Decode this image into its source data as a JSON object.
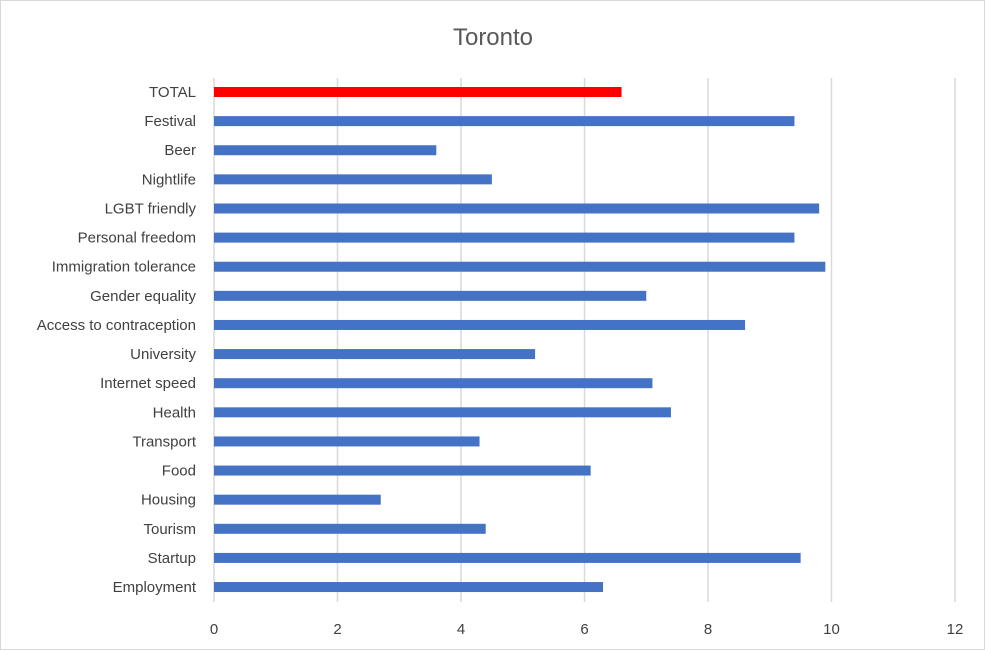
{
  "chart_data": {
    "type": "bar",
    "orientation": "horizontal",
    "title": "Toronto",
    "xlabel": "",
    "ylabel": "",
    "xlim": [
      0,
      12
    ],
    "xticks": [
      0,
      2,
      4,
      6,
      8,
      10,
      12
    ],
    "grid": "vertical",
    "legend": "none",
    "colors": {
      "default": "#4472c4",
      "highlight": "#ff0000",
      "grid": "#d9d9d9",
      "title": "#595959",
      "text": "#404040"
    },
    "categories": [
      "TOTAL",
      "Festival",
      "Beer",
      "Nightlife",
      "LGBT friendly",
      "Personal freedom",
      "Immigration tolerance",
      "Gender equality",
      "Access to contraception",
      "University",
      "Internet speed",
      "Health",
      "Transport",
      "Food",
      "Housing",
      "Tourism",
      "Startup",
      "Employment"
    ],
    "values": [
      6.6,
      9.4,
      3.6,
      4.5,
      9.8,
      9.4,
      9.9,
      7.0,
      8.6,
      5.2,
      7.1,
      7.4,
      4.3,
      6.1,
      2.7,
      4.4,
      9.5,
      6.3
    ],
    "highlight": [
      "TOTAL"
    ]
  }
}
